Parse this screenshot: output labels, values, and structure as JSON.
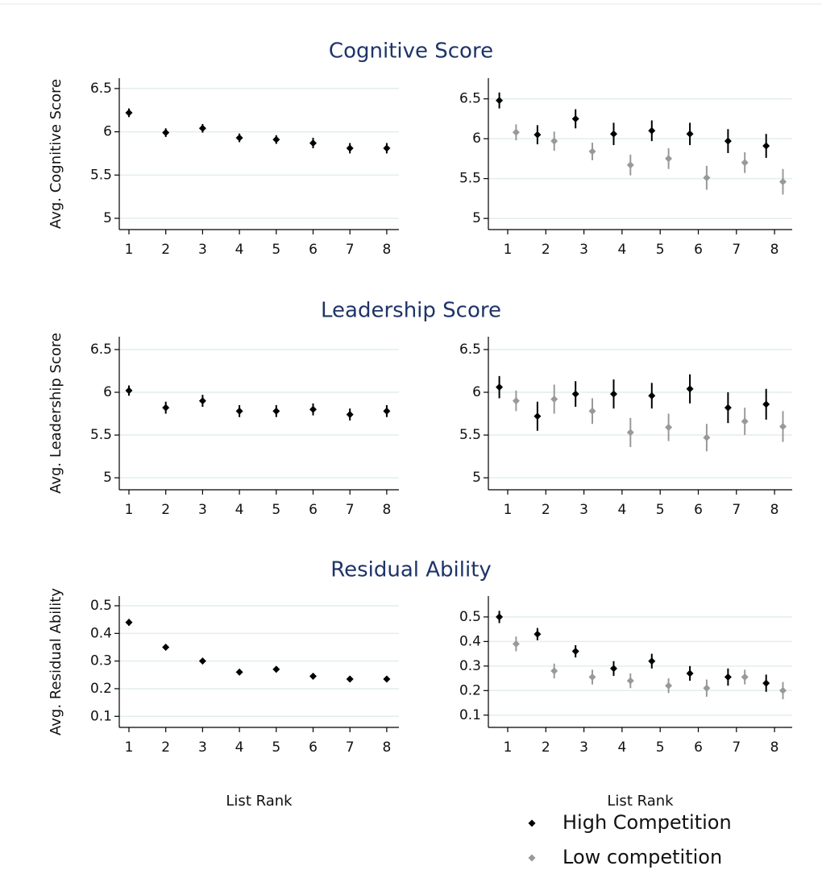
{
  "chart_data": [
    {
      "type": "errorbar",
      "title": "Cognitive  Score",
      "ylabel": "Avg. Cognitive Score",
      "categories": [
        "1",
        "2",
        "3",
        "4",
        "5",
        "6",
        "7",
        "8"
      ],
      "values": [
        6.22,
        5.99,
        6.04,
        5.93,
        5.91,
        5.87,
        5.81,
        5.81
      ],
      "errors": [
        0.05,
        0.05,
        0.05,
        0.05,
        0.05,
        0.06,
        0.06,
        0.06
      ],
      "color": "#000000",
      "ylim": [
        4.87,
        6.62
      ],
      "yticks": [
        5,
        5.5,
        6,
        6.5
      ],
      "grid": true
    },
    {
      "type": "errorbar",
      "categories": [
        "1",
        "2",
        "3",
        "4",
        "5",
        "6",
        "7",
        "8"
      ],
      "series": [
        {
          "color": "#000000",
          "values": [
            6.48,
            6.05,
            6.25,
            6.06,
            6.1,
            6.06,
            5.97,
            5.91
          ],
          "errors": [
            0.1,
            0.12,
            0.12,
            0.14,
            0.13,
            0.14,
            0.15,
            0.15
          ]
        },
        {
          "color": "#999999",
          "values": [
            6.08,
            5.97,
            5.84,
            5.67,
            5.75,
            5.51,
            5.7,
            5.46
          ],
          "errors": [
            0.1,
            0.12,
            0.11,
            0.13,
            0.13,
            0.15,
            0.13,
            0.16
          ]
        }
      ],
      "ylim": [
        4.86,
        6.76
      ],
      "yticks": [
        5,
        5.5,
        6,
        6.5
      ],
      "grid": true
    },
    {
      "type": "errorbar",
      "title": "Leadership Score",
      "ylabel": "Avg. Leadership Score",
      "categories": [
        "1",
        "2",
        "3",
        "4",
        "5",
        "6",
        "7",
        "8"
      ],
      "values": [
        6.02,
        5.82,
        5.9,
        5.78,
        5.78,
        5.8,
        5.74,
        5.78
      ],
      "errors": [
        0.06,
        0.07,
        0.07,
        0.07,
        0.07,
        0.07,
        0.07,
        0.07
      ],
      "color": "#000000",
      "ylim": [
        4.86,
        6.65
      ],
      "yticks": [
        5,
        5.5,
        6,
        6.5
      ],
      "grid": true
    },
    {
      "type": "errorbar",
      "categories": [
        "1",
        "2",
        "3",
        "4",
        "5",
        "6",
        "7",
        "8"
      ],
      "series": [
        {
          "color": "#000000",
          "values": [
            6.06,
            5.72,
            5.98,
            5.98,
            5.96,
            6.04,
            5.82,
            5.86
          ],
          "errors": [
            0.13,
            0.17,
            0.15,
            0.17,
            0.15,
            0.17,
            0.18,
            0.18
          ]
        },
        {
          "color": "#999999",
          "values": [
            5.9,
            5.92,
            5.78,
            5.53,
            5.59,
            5.47,
            5.66,
            5.6
          ],
          "errors": [
            0.12,
            0.17,
            0.15,
            0.17,
            0.16,
            0.16,
            0.16,
            0.18
          ]
        }
      ],
      "ylim": [
        4.86,
        6.65
      ],
      "yticks": [
        5,
        5.5,
        6,
        6.5
      ],
      "grid": true
    },
    {
      "type": "errorbar",
      "title": "Residual Ability",
      "ylabel": "Avg. Residual Ability",
      "xlabel": "List Rank",
      "categories": [
        "1",
        "2",
        "3",
        "4",
        "5",
        "6",
        "7",
        "8"
      ],
      "values": [
        0.44,
        0.35,
        0.3,
        0.26,
        0.27,
        0.245,
        0.235,
        0.235
      ],
      "errors": [
        0.012,
        0.01,
        0.01,
        0.01,
        0.01,
        0.008,
        0.008,
        0.01
      ],
      "color": "#000000",
      "ylim": [
        0.06,
        0.535
      ],
      "yticks": [
        0.1,
        0.2,
        0.3,
        0.4,
        0.5
      ],
      "grid": true
    },
    {
      "type": "errorbar",
      "xlabel": "List Rank",
      "categories": [
        "1",
        "2",
        "3",
        "4",
        "5",
        "6",
        "7",
        "8"
      ],
      "series": [
        {
          "name": "High Competition",
          "color": "#000000",
          "values": [
            0.5,
            0.43,
            0.36,
            0.29,
            0.32,
            0.27,
            0.255,
            0.23
          ],
          "errors": [
            0.025,
            0.025,
            0.025,
            0.03,
            0.03,
            0.03,
            0.035,
            0.035
          ]
        },
        {
          "name": "Low competition",
          "color": "#999999",
          "values": [
            0.39,
            0.28,
            0.255,
            0.24,
            0.22,
            0.21,
            0.255,
            0.2
          ],
          "errors": [
            0.03,
            0.03,
            0.03,
            0.03,
            0.03,
            0.035,
            0.03,
            0.035
          ]
        }
      ],
      "ylim": [
        0.05,
        0.585
      ],
      "yticks": [
        0.1,
        0.2,
        0.3,
        0.4,
        0.5
      ],
      "grid": true
    }
  ]
}
